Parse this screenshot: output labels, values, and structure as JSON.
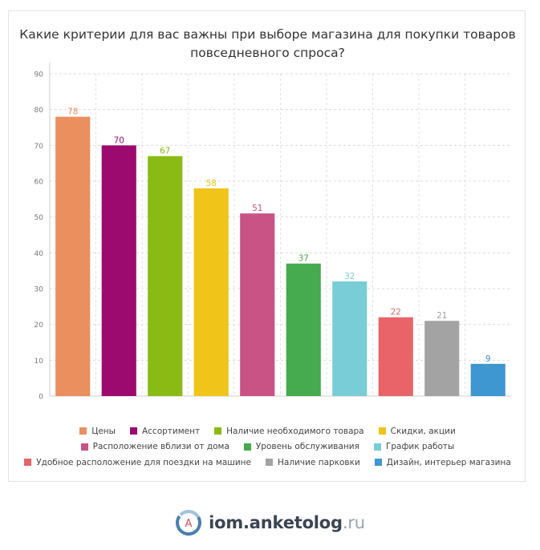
{
  "title_line1": "Какие критерии для вас важны при выборе магазина для покупки товаров",
  "title_line2": "повседневного спроса?",
  "chart_data": {
    "type": "bar",
    "title": "Какие критерии для вас важны при выборе магазина для покупки товаров повседневного спроса?",
    "categories": [
      "Цены",
      "Ассортимент",
      "Наличие необходимого товара",
      "Скидки, акции",
      "Расположение вблизи от дома",
      "Уровень обслуживания",
      "График работы",
      "Удобное расположение для поездки на машине",
      "Наличие парковки",
      "Дизайн, интерьер магазина"
    ],
    "values": [
      78,
      70,
      67,
      58,
      51,
      37,
      32,
      22,
      21,
      9
    ],
    "colors": [
      "#ec8f5e",
      "#9c0a6f",
      "#8abb15",
      "#f0c419",
      "#c85384",
      "#46aa4f",
      "#78cdd7",
      "#e86468",
      "#a3a3a3",
      "#3e97d1"
    ],
    "ylim": [
      0,
      90
    ],
    "yticks": [
      0,
      10,
      20,
      30,
      40,
      50,
      60,
      70,
      80,
      90
    ],
    "grid": true,
    "legend": "bottom"
  },
  "legend_rows": [
    [
      0,
      1,
      2,
      3
    ],
    [
      4,
      5,
      6
    ],
    [
      7,
      8,
      9
    ]
  ],
  "brand": {
    "name": "iom.anketolog",
    "tld": ".ru",
    "logo_letter": "A"
  }
}
